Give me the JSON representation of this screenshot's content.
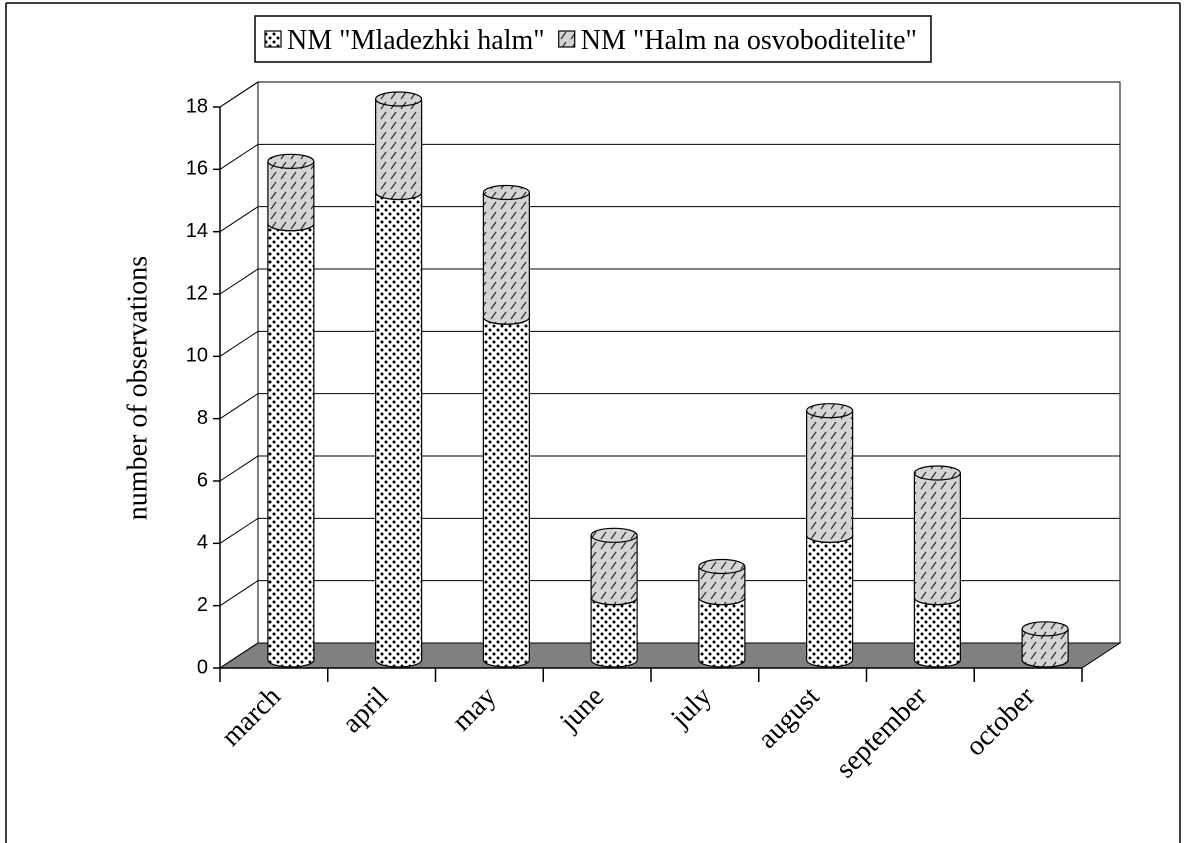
{
  "chart_data": {
    "type": "bar3d-stacked",
    "y_label": "number of observations",
    "categories": [
      "march",
      "april",
      "may",
      "june",
      "july",
      "august",
      "september",
      "october"
    ],
    "series": [
      {
        "name": "NM \"Mladezhki halm\"",
        "color": "#000000",
        "values": [
          14,
          15,
          11,
          2,
          2,
          4,
          2,
          0
        ]
      },
      {
        "name": "NM \"Halm na osvoboditelite\"",
        "color": "#c0c0c0",
        "values": [
          2,
          3,
          4,
          2,
          1,
          4,
          4,
          1
        ]
      }
    ],
    "ylim": [
      0,
      18
    ],
    "yticks": [
      0,
      2,
      4,
      6,
      8,
      10,
      12,
      14,
      16,
      18
    ],
    "grid": true,
    "legend": "top"
  }
}
